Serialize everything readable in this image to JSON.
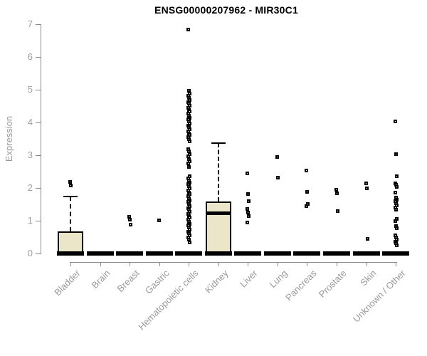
{
  "window": {
    "title": "ENSG00000207962 - MIR30C1"
  },
  "chart_data": {
    "type": "boxplot",
    "title": "ENSG00000207962 - MIR30C1",
    "ylabel": "Expression",
    "xlabel": "",
    "ylim": [
      0,
      7
    ],
    "yticks": [
      0,
      1,
      2,
      3,
      4,
      5,
      6,
      7
    ],
    "grid": false,
    "legend": null,
    "box_fill_color": "#ece6c9",
    "box_border_color": "#000000",
    "axis_color": "#8a8a8a",
    "label_color": "#9a9a9a",
    "title_color": "#000000",
    "categories": [
      {
        "name": "Bladder",
        "box": {
          "low": 0,
          "q1": 0,
          "median": 0.05,
          "q3": 0.68,
          "high": 1.73
        },
        "outliers": [
          2.2,
          2.08
        ]
      },
      {
        "name": "Brain",
        "box": {
          "low": 0,
          "q1": 0,
          "median": 0,
          "q3": 0,
          "high": 0
        },
        "outliers": []
      },
      {
        "name": "Breast",
        "box": {
          "low": 0,
          "q1": 0,
          "median": 0,
          "q3": 0,
          "high": 0
        },
        "outliers": [
          1.12,
          1.05,
          0.9
        ]
      },
      {
        "name": "Gastric",
        "box": {
          "low": 0,
          "q1": 0,
          "median": 0,
          "q3": 0,
          "high": 0
        },
        "outliers": [
          1.03
        ]
      },
      {
        "name": "Hematopoietic cells",
        "box": {
          "low": 0,
          "q1": 0,
          "median": 0,
          "q3": 0,
          "high": 0
        },
        "outliers": [
          6.85,
          4.97,
          4.9,
          4.82,
          4.76,
          4.7,
          4.64,
          4.58,
          4.52,
          4.46,
          4.4,
          4.34,
          4.28,
          4.22,
          4.16,
          4.1,
          4.04,
          3.98,
          3.92,
          3.86,
          3.8,
          3.74,
          3.68,
          3.62,
          3.56,
          3.5,
          3.44,
          3.2,
          3.12,
          3.05,
          2.98,
          2.9,
          2.83,
          2.76,
          2.65,
          2.36,
          2.3,
          2.24,
          2.18,
          2.12,
          2.06,
          2.0,
          1.94,
          1.88,
          1.82,
          1.76,
          1.7,
          1.64,
          1.58,
          1.52,
          1.46,
          1.4,
          1.34,
          1.28,
          1.22,
          1.16,
          1.1,
          1.04,
          0.98,
          0.92,
          0.86,
          0.8,
          0.74,
          0.68,
          0.62,
          0.56,
          0.5,
          0.44,
          0.35
        ]
      },
      {
        "name": "Kidney",
        "box": {
          "low": 0,
          "q1": 0,
          "median": 1.23,
          "q3": 1.58,
          "high": 3.37
        },
        "outliers": []
      },
      {
        "name": "Liver",
        "box": {
          "low": 0,
          "q1": 0,
          "median": 0,
          "q3": 0,
          "high": 0
        },
        "outliers": [
          2.45,
          1.82,
          1.6,
          1.38,
          1.27,
          1.16,
          0.96
        ]
      },
      {
        "name": "Lung",
        "box": {
          "low": 0,
          "q1": 0,
          "median": 0,
          "q3": 0,
          "high": 0
        },
        "outliers": [
          2.95,
          2.32
        ]
      },
      {
        "name": "Pancreas",
        "box": {
          "low": 0,
          "q1": 0,
          "median": 0,
          "q3": 0,
          "high": 0
        },
        "outliers": [
          2.55,
          1.9,
          1.52,
          1.45
        ]
      },
      {
        "name": "Prostate",
        "box": {
          "low": 0,
          "q1": 0,
          "median": 0,
          "q3": 0,
          "high": 0
        },
        "outliers": [
          1.95,
          1.85,
          1.3
        ]
      },
      {
        "name": "Skin",
        "box": {
          "low": 0,
          "q1": 0,
          "median": 0,
          "q3": 0,
          "high": 0
        },
        "outliers": [
          2.15,
          2.0,
          0.45
        ]
      },
      {
        "name": "Unknown / Other",
        "box": {
          "low": 0,
          "q1": 0,
          "median": 0,
          "q3": 0,
          "high": 0
        },
        "outliers": [
          4.05,
          3.05,
          2.38,
          2.15,
          2.1,
          2.04,
          1.88,
          1.72,
          1.66,
          1.6,
          1.54,
          1.48,
          1.42,
          1.35,
          1.06,
          1.0,
          0.85,
          0.78,
          0.56,
          0.5,
          0.44,
          0.38,
          0.32,
          0.26
        ]
      }
    ]
  }
}
